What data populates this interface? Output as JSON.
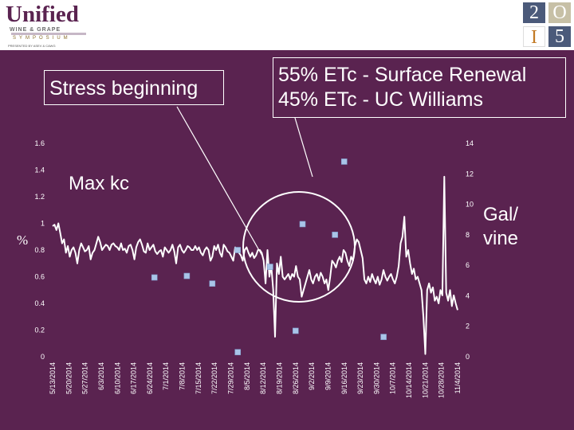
{
  "header": {
    "logo_main": "Unified",
    "logo_sub": "WINE & GRAPE",
    "logo_symposium": "SYMPOSIUM",
    "logo_presented": "PRESENTED BY ASEV & CAWG",
    "tile_1": "2",
    "tile_2": "O",
    "tile_3": "I",
    "tile_4": "5"
  },
  "annotations": {
    "stress": "Stress beginning",
    "etc_line1": "55% ETc - Surface Renewal",
    "etc_line2": "45% ETc -  UC Williams",
    "max_kc": "Max kc"
  },
  "chart_data": {
    "type": "line",
    "ylabel": "%",
    "y2label_line1": "Gal/",
    "y2label_line2": "vine",
    "ylim": [
      0,
      1.6
    ],
    "y2lim": [
      0,
      14
    ],
    "yticks": [
      "0",
      "0.2",
      "0.4",
      "0.6",
      "0.8",
      "1",
      "1.2",
      "1.4",
      "1.6"
    ],
    "y2ticks": [
      "0",
      "2",
      "4",
      "6",
      "8",
      "10",
      "12",
      "14"
    ],
    "xticks": [
      "5/13/2014",
      "5/20/2014",
      "5/27/2014",
      "6/3/2014",
      "6/10/2014",
      "6/17/2014",
      "6/24/2014",
      "7/1/2014",
      "7/8/2014",
      "7/15/2014",
      "7/22/2014",
      "7/29/2014",
      "8/5/2014",
      "8/12/2014",
      "8/19/2014",
      "8/26/2014",
      "9/2/2014",
      "9/9/2014",
      "9/16/2014",
      "9/23/2014",
      "9/30/2014",
      "10/7/2014",
      "10/14/2014",
      "10/21/2014",
      "10/28/2014",
      "11/4/2014"
    ],
    "series": [
      {
        "values": [
          0.98,
          0.99,
          0.95,
          1.0,
          0.93,
          0.85,
          0.88,
          0.78,
          0.83,
          0.75,
          0.8,
          0.82,
          0.78,
          0.7,
          0.8,
          0.85,
          0.82,
          0.79,
          0.8,
          0.83,
          0.73,
          0.78,
          0.8,
          0.85,
          0.9,
          0.86,
          0.8,
          0.82,
          0.84,
          0.83,
          0.8,
          0.84,
          0.85,
          0.83,
          0.82,
          0.8,
          0.85,
          0.8,
          0.81,
          0.78,
          0.83,
          0.84,
          0.8,
          0.73,
          0.82,
          0.86,
          0.88,
          0.84,
          0.79,
          0.78,
          0.85,
          0.8,
          0.82,
          0.84,
          0.79,
          0.77,
          0.79,
          0.8,
          0.75,
          0.82,
          0.8,
          0.78,
          0.8,
          0.84,
          0.79,
          0.7,
          0.82,
          0.84,
          0.8,
          0.78,
          0.8,
          0.83,
          0.82,
          0.8,
          0.8,
          0.83,
          0.8,
          0.82,
          0.78,
          0.76,
          0.8,
          0.82,
          0.8,
          0.72,
          0.75,
          0.83,
          0.8,
          0.84,
          0.78,
          0.75,
          0.84,
          0.82,
          0.79,
          0.78,
          0.75,
          0.72,
          0.82,
          0.8,
          0.78,
          0.76,
          0.72,
          0.8,
          0.82,
          0.78,
          0.75,
          0.78,
          0.74,
          0.76,
          0.8,
          0.8,
          0.78,
          0.72,
          0.55,
          0.8,
          0.6,
          0.68,
          0.5,
          0.15,
          0.7,
          0.62,
          0.75,
          0.6,
          0.58,
          0.6,
          0.62,
          0.58,
          0.62,
          0.6,
          0.68,
          0.6,
          0.58,
          0.45,
          0.5,
          0.55,
          0.6,
          0.65,
          0.58,
          0.55,
          0.6,
          0.62,
          0.57,
          0.63,
          0.6,
          0.55,
          0.58,
          0.5,
          0.6,
          0.72,
          0.7,
          0.67,
          0.72,
          0.75,
          0.71,
          0.8,
          0.78,
          0.72,
          0.68,
          0.75,
          0.72,
          0.83,
          0.88,
          0.86,
          0.8,
          0.74,
          0.58,
          0.55,
          0.6,
          0.56,
          0.62,
          0.58,
          0.55,
          0.6,
          0.54,
          0.58,
          0.65,
          0.6,
          0.57,
          0.6,
          0.62,
          0.58,
          0.55,
          0.6,
          0.68,
          0.85,
          0.9,
          1.05,
          0.75,
          0.8,
          0.7,
          0.62,
          0.66,
          0.58,
          0.6,
          0.55,
          0.5,
          0.3,
          0.02,
          0.5,
          0.55,
          0.48,
          0.52,
          0.42,
          0.45,
          0.4,
          0.5,
          0.46,
          1.35,
          0.48,
          0.42,
          0.5,
          0.38,
          0.46,
          0.4,
          0.35
        ]
      },
      {
        "axis": "right",
        "dates": [
          "6/26/2014",
          "7/10/2014",
          "7/21/2014",
          "8/1/2014",
          "8/1/2014",
          "8/15/2014",
          "8/26/2014",
          "8/29/2014",
          "9/12/2014",
          "9/16/2014",
          "10/3/2014"
        ],
        "values": [
          5.2,
          5.3,
          4.8,
          0.3,
          7.0,
          5.9,
          1.7,
          8.7,
          8.0,
          12.8,
          1.3
        ]
      }
    ]
  }
}
